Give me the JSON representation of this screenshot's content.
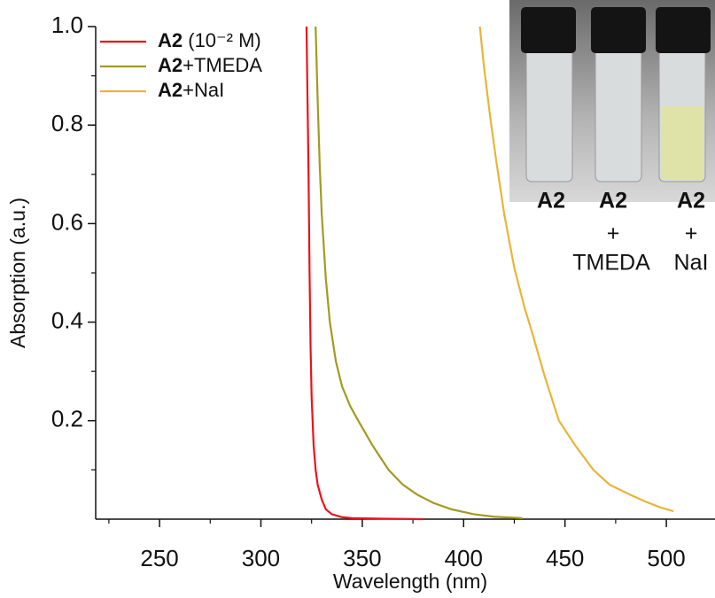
{
  "chart_data": {
    "type": "line",
    "xlabel": "Wavelength (nm)",
    "ylabel": "Absorption (a.u.)",
    "xlim": [
      218.5,
      524
    ],
    "ylim": [
      0,
      1
    ],
    "xticks": [
      250,
      300,
      350,
      400,
      450,
      500
    ],
    "xminorticks": [
      225,
      275,
      325,
      375,
      425,
      475
    ],
    "yticks": [
      0.2,
      0.4,
      0.6,
      0.8,
      {
        "value": 1,
        "label": "1.0"
      }
    ],
    "yminorticks": [
      0.1,
      0.3,
      0.5,
      0.7,
      0.9
    ],
    "series": [
      {
        "name": "A2 (10⁻² M)",
        "color": "#e8141c",
        "x": [
          322.5,
          323,
          323.5,
          324,
          324.5,
          325,
          326,
          327,
          328,
          330,
          332,
          335,
          340,
          345,
          360,
          380
        ],
        "values": [
          1.0,
          0.85,
          0.7,
          0.5,
          0.35,
          0.25,
          0.15,
          0.1,
          0.07,
          0.04,
          0.02,
          0.01,
          0.004,
          0.002,
          0.001,
          0
        ]
      },
      {
        "name": "A2+TMEDA",
        "color": "#a39a22",
        "x": [
          327,
          328,
          329,
          330,
          332,
          334,
          337,
          340,
          344,
          348,
          355,
          363,
          370,
          377,
          385,
          394,
          405,
          415,
          429
        ],
        "values": [
          1.0,
          0.85,
          0.72,
          0.62,
          0.49,
          0.4,
          0.32,
          0.27,
          0.23,
          0.2,
          0.15,
          0.1,
          0.07,
          0.05,
          0.033,
          0.02,
          0.01,
          0.005,
          0.002
        ]
      },
      {
        "name": "A2+NaI",
        "color": "#e8b53a",
        "x": [
          408,
          410,
          413,
          416,
          420,
          425,
          430,
          433,
          440,
          447,
          455,
          464,
          472,
          482,
          490,
          497,
          503.5
        ],
        "values": [
          1.0,
          0.92,
          0.82,
          0.73,
          0.62,
          0.51,
          0.43,
          0.39,
          0.29,
          0.2,
          0.15,
          0.1,
          0.07,
          0.05,
          0.035,
          0.024,
          0.016
        ]
      }
    ],
    "inset_labels": [
      [
        "A2"
      ],
      [
        "A2",
        "+",
        "TMEDA"
      ],
      [
        "A2",
        "+",
        "NaI"
      ]
    ]
  }
}
